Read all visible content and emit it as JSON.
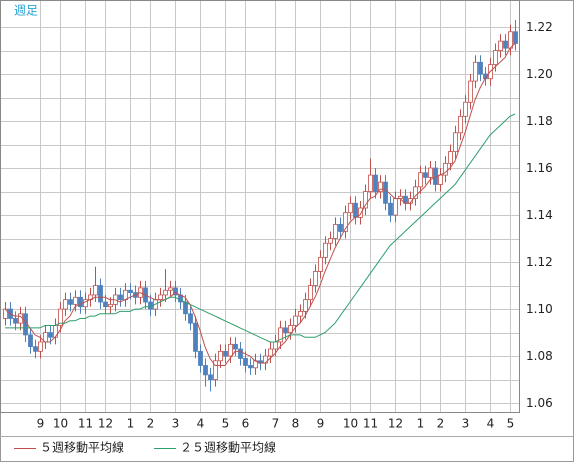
{
  "chart_data": {
    "type": "candlestick",
    "title": "週足",
    "open": [
      1.096,
      1.1,
      1.096,
      1.094,
      1.098,
      1.089,
      1.084,
      1.082,
      1.086,
      1.09,
      1.088,
      1.093,
      1.1,
      1.104,
      1.102,
      1.105,
      1.101,
      1.104,
      1.106,
      1.11,
      1.103,
      1.101,
      1.102,
      1.106,
      1.104,
      1.108,
      1.107,
      1.105,
      1.109,
      1.103,
      1.1,
      1.104,
      1.106,
      1.108,
      1.109,
      1.106,
      1.103,
      1.098,
      1.094,
      1.082,
      1.076,
      1.072,
      1.07,
      1.078,
      1.082,
      1.08,
      1.085,
      1.083,
      1.079,
      1.076,
      1.075,
      1.078,
      1.077,
      1.08,
      1.083,
      1.086,
      1.092,
      1.09,
      1.093,
      1.097,
      1.099,
      1.104,
      1.11,
      1.116,
      1.122,
      1.128,
      1.13,
      1.136,
      1.133,
      1.141,
      1.145,
      1.139,
      1.143,
      1.15,
      1.157,
      1.15,
      1.154,
      1.145,
      1.14,
      1.147,
      1.148,
      1.145,
      1.147,
      1.152,
      1.158,
      1.156,
      1.16,
      1.153,
      1.157,
      1.162,
      1.167,
      1.175,
      1.182,
      1.188,
      1.197,
      1.205,
      1.2,
      1.198,
      1.204,
      1.21,
      1.214,
      1.211,
      1.218
    ],
    "high": [
      1.103,
      1.103,
      1.099,
      1.101,
      1.101,
      1.092,
      1.087,
      1.089,
      1.093,
      1.093,
      1.096,
      1.103,
      1.107,
      1.107,
      1.108,
      1.108,
      1.107,
      1.109,
      1.118,
      1.113,
      1.106,
      1.105,
      1.109,
      1.109,
      1.111,
      1.111,
      1.11,
      1.112,
      1.112,
      1.106,
      1.107,
      1.109,
      1.117,
      1.112,
      1.112,
      1.109,
      1.106,
      1.101,
      1.097,
      1.085,
      1.079,
      1.075,
      1.081,
      1.085,
      1.085,
      1.088,
      1.088,
      1.086,
      1.082,
      1.079,
      1.081,
      1.081,
      1.083,
      1.086,
      1.089,
      1.095,
      1.095,
      1.096,
      1.1,
      1.102,
      1.107,
      1.113,
      1.119,
      1.125,
      1.131,
      1.133,
      1.139,
      1.139,
      1.144,
      1.148,
      1.148,
      1.146,
      1.153,
      1.164,
      1.16,
      1.157,
      1.157,
      1.148,
      1.15,
      1.151,
      1.151,
      1.15,
      1.155,
      1.161,
      1.161,
      1.163,
      1.163,
      1.16,
      1.165,
      1.17,
      1.178,
      1.185,
      1.191,
      1.2,
      1.208,
      1.208,
      1.203,
      1.207,
      1.213,
      1.217,
      1.217,
      1.221,
      1.223
    ],
    "low": [
      1.093,
      1.093,
      1.091,
      1.091,
      1.086,
      1.081,
      1.079,
      1.079,
      1.083,
      1.085,
      1.085,
      1.09,
      1.097,
      1.099,
      1.099,
      1.098,
      1.098,
      1.101,
      1.103,
      1.1,
      1.098,
      1.098,
      1.099,
      1.101,
      1.101,
      1.104,
      1.102,
      1.102,
      1.1,
      1.097,
      1.097,
      1.101,
      1.103,
      1.105,
      1.103,
      1.1,
      1.095,
      1.091,
      1.079,
      1.073,
      1.067,
      1.065,
      1.067,
      1.075,
      1.077,
      1.077,
      1.08,
      1.076,
      1.073,
      1.072,
      1.072,
      1.074,
      1.074,
      1.077,
      1.08,
      1.083,
      1.087,
      1.087,
      1.09,
      1.094,
      1.096,
      1.101,
      1.107,
      1.113,
      1.119,
      1.125,
      1.127,
      1.13,
      1.13,
      1.138,
      1.136,
      1.136,
      1.14,
      1.147,
      1.147,
      1.147,
      1.142,
      1.137,
      1.137,
      1.144,
      1.142,
      1.142,
      1.144,
      1.149,
      1.153,
      1.153,
      1.15,
      1.15,
      1.154,
      1.159,
      1.164,
      1.172,
      1.179,
      1.185,
      1.194,
      1.197,
      1.195,
      1.195,
      1.201,
      1.207,
      1.208,
      1.208,
      1.21
    ],
    "close": [
      1.1,
      1.096,
      1.094,
      1.098,
      1.089,
      1.084,
      1.082,
      1.086,
      1.09,
      1.088,
      1.093,
      1.1,
      1.104,
      1.102,
      1.105,
      1.101,
      1.104,
      1.106,
      1.11,
      1.103,
      1.101,
      1.102,
      1.106,
      1.104,
      1.108,
      1.107,
      1.105,
      1.109,
      1.103,
      1.1,
      1.104,
      1.106,
      1.108,
      1.109,
      1.106,
      1.103,
      1.098,
      1.094,
      1.082,
      1.076,
      1.072,
      1.07,
      1.078,
      1.082,
      1.08,
      1.085,
      1.083,
      1.079,
      1.076,
      1.075,
      1.078,
      1.077,
      1.08,
      1.083,
      1.086,
      1.092,
      1.09,
      1.093,
      1.097,
      1.099,
      1.104,
      1.11,
      1.116,
      1.122,
      1.128,
      1.13,
      1.136,
      1.133,
      1.141,
      1.145,
      1.139,
      1.143,
      1.15,
      1.157,
      1.15,
      1.154,
      1.145,
      1.14,
      1.147,
      1.148,
      1.145,
      1.147,
      1.152,
      1.158,
      1.156,
      1.16,
      1.153,
      1.157,
      1.162,
      1.167,
      1.175,
      1.182,
      1.188,
      1.197,
      1.205,
      1.2,
      1.198,
      1.204,
      1.21,
      1.214,
      1.211,
      1.218,
      1.213
    ],
    "up_color": "#c0504d",
    "down_color": "#4f81bd",
    "series": [
      {
        "name": "５週移動平均線",
        "color": "#c0504d",
        "values": [
          1.1,
          1.098,
          1.097,
          1.097,
          1.095,
          1.092,
          1.089,
          1.088,
          1.086,
          1.086,
          1.088,
          1.091,
          1.095,
          1.097,
          1.101,
          1.102,
          1.103,
          1.104,
          1.105,
          1.105,
          1.105,
          1.104,
          1.104,
          1.103,
          1.104,
          1.105,
          1.106,
          1.107,
          1.106,
          1.105,
          1.104,
          1.104,
          1.104,
          1.105,
          1.107,
          1.106,
          1.105,
          1.102,
          1.097,
          1.091,
          1.084,
          1.079,
          1.076,
          1.076,
          1.076,
          1.079,
          1.082,
          1.082,
          1.081,
          1.08,
          1.078,
          1.077,
          1.077,
          1.079,
          1.081,
          1.084,
          1.086,
          1.089,
          1.092,
          1.094,
          1.097,
          1.101,
          1.105,
          1.11,
          1.116,
          1.121,
          1.126,
          1.13,
          1.134,
          1.137,
          1.139,
          1.14,
          1.144,
          1.147,
          1.148,
          1.151,
          1.151,
          1.149,
          1.147,
          1.147,
          1.145,
          1.145,
          1.148,
          1.15,
          1.152,
          1.155,
          1.156,
          1.157,
          1.158,
          1.16,
          1.163,
          1.169,
          1.175,
          1.182,
          1.189,
          1.194,
          1.198,
          1.201,
          1.203,
          1.205,
          1.207,
          1.211,
          1.213
        ]
      },
      {
        "name": "２５週移動平均線",
        "color": "#2e9e6b",
        "values": [
          1.092,
          1.092,
          1.092,
          1.092,
          1.092,
          1.092,
          1.092,
          1.092,
          1.093,
          1.093,
          1.093,
          1.094,
          1.094,
          1.095,
          1.095,
          1.096,
          1.096,
          1.097,
          1.097,
          1.098,
          1.098,
          1.098,
          1.098,
          1.099,
          1.099,
          1.099,
          1.1,
          1.1,
          1.101,
          1.101,
          1.102,
          1.103,
          1.104,
          1.105,
          1.105,
          1.104,
          1.103,
          1.102,
          1.101,
          1.1,
          1.099,
          1.098,
          1.097,
          1.096,
          1.095,
          1.094,
          1.093,
          1.092,
          1.091,
          1.09,
          1.089,
          1.088,
          1.087,
          1.086,
          1.086,
          1.087,
          1.088,
          1.089,
          1.089,
          1.089,
          1.088,
          1.088,
          1.088,
          1.089,
          1.09,
          1.092,
          1.094,
          1.097,
          1.1,
          1.103,
          1.106,
          1.109,
          1.112,
          1.115,
          1.118,
          1.121,
          1.124,
          1.127,
          1.129,
          1.131,
          1.133,
          1.135,
          1.137,
          1.139,
          1.141,
          1.143,
          1.145,
          1.147,
          1.149,
          1.151,
          1.153,
          1.156,
          1.159,
          1.162,
          1.165,
          1.168,
          1.171,
          1.174,
          1.176,
          1.178,
          1.18,
          1.182,
          1.183
        ]
      }
    ],
    "xlim": [
      -1,
      103
    ],
    "xticks": [
      {
        "value": 7,
        "label": "9"
      },
      {
        "value": 11,
        "label": "10"
      },
      {
        "value": 16,
        "label": "11"
      },
      {
        "value": 20,
        "label": "12"
      },
      {
        "value": 25,
        "label": "1"
      },
      {
        "value": 29,
        "label": "2"
      },
      {
        "value": 34,
        "label": "3"
      },
      {
        "value": 39,
        "label": "4"
      },
      {
        "value": 44,
        "label": "5"
      },
      {
        "value": 48,
        "label": "6"
      },
      {
        "value": 54,
        "label": "7"
      },
      {
        "value": 58,
        "label": "8"
      },
      {
        "value": 63,
        "label": "9"
      },
      {
        "value": 69,
        "label": "10"
      },
      {
        "value": 73,
        "label": "11"
      },
      {
        "value": 78,
        "label": "12"
      },
      {
        "value": 83,
        "label": "1"
      },
      {
        "value": 87,
        "label": "2"
      },
      {
        "value": 92,
        "label": "3"
      },
      {
        "value": 97,
        "label": "4"
      },
      {
        "value": 101,
        "label": "5"
      }
    ],
    "ylim": [
      1.0562,
      1.2315
    ],
    "yticks": [
      {
        "value": 1.06,
        "label": "1.06"
      },
      {
        "value": 1.08,
        "label": "1.08"
      },
      {
        "value": 1.1,
        "label": "1.10"
      },
      {
        "value": 1.12,
        "label": "1.12"
      },
      {
        "value": 1.14,
        "label": "1.14"
      },
      {
        "value": 1.16,
        "label": "1.16"
      },
      {
        "value": 1.18,
        "label": "1.18"
      },
      {
        "value": 1.2,
        "label": "1.20"
      },
      {
        "value": 1.22,
        "label": "1.22"
      }
    ],
    "yminor": [
      1.07,
      1.09,
      1.11,
      1.13,
      1.15,
      1.17,
      1.19,
      1.21
    ],
    "grid": true
  }
}
